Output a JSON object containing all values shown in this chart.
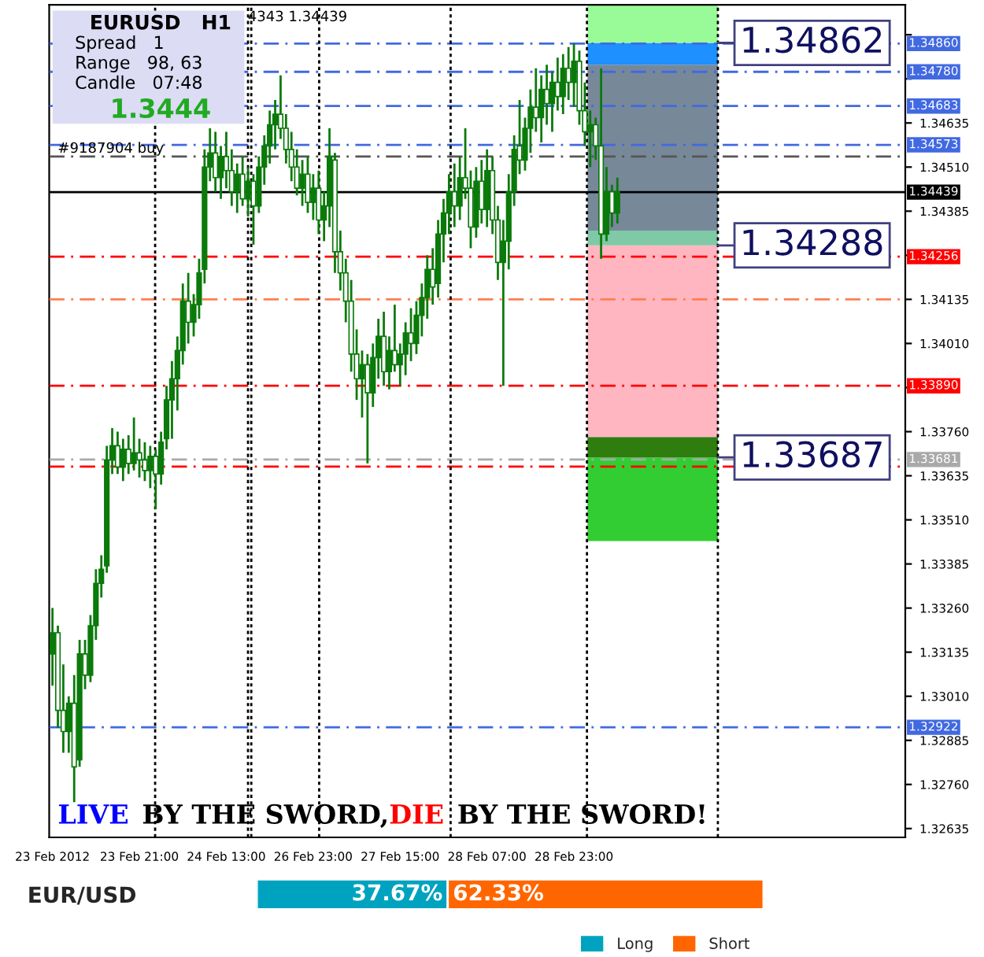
{
  "chart_data": [
    {
      "type": "candlestick",
      "categories": [
        "23 Feb 2012",
        null,
        null,
        null,
        null,
        null,
        null,
        null,
        null,
        null,
        null,
        null,
        null,
        null,
        null,
        null,
        "23 Feb 21:00",
        null,
        null,
        null,
        null,
        null,
        null,
        null,
        null,
        null,
        null,
        null,
        null,
        null,
        null,
        null,
        "24 Feb 13:00",
        null,
        null,
        null,
        null,
        null,
        null,
        null,
        null,
        null,
        null,
        null,
        null,
        null,
        null,
        null,
        "26 Feb 23:00",
        null,
        null,
        null,
        null,
        null,
        null,
        null,
        null,
        null,
        null,
        null,
        null,
        null,
        null,
        null,
        "27 Feb 15:00",
        null,
        null,
        null,
        null,
        null,
        null,
        null,
        null,
        null,
        null,
        null,
        null,
        null,
        null,
        null,
        "28 Feb 07:00",
        null,
        null,
        null,
        null,
        null,
        null,
        null,
        null,
        null,
        null,
        null,
        null,
        null,
        null,
        null,
        "28 Feb 23:00",
        null,
        null,
        null,
        null,
        null,
        null,
        null,
        null,
        null,
        null,
        null,
        null,
        null,
        null,
        null,
        null,
        null,
        null,
        null,
        null,
        null,
        null,
        null,
        null,
        null,
        null,
        null,
        null,
        null,
        null,
        null,
        null,
        null,
        null,
        null,
        null,
        null,
        null,
        null,
        null,
        null,
        null,
        null,
        null,
        null,
        null,
        null,
        null,
        null,
        null,
        null,
        null,
        null,
        null,
        null,
        null,
        null,
        null,
        null,
        null,
        null
      ],
      "ohlc": [
        [
          1.3313,
          1.3326,
          1.3304,
          1.3319
        ],
        [
          1.3319,
          1.3321,
          1.3292,
          1.3297
        ],
        [
          1.3297,
          1.331,
          1.3285,
          1.3291
        ],
        [
          1.3291,
          1.3301,
          1.3285,
          1.3299
        ],
        [
          1.3299,
          1.3307,
          1.3271,
          1.3281
        ],
        [
          1.3283,
          1.3317,
          1.3281,
          1.3313
        ],
        [
          1.3313,
          1.3317,
          1.3303,
          1.3307
        ],
        [
          1.3307,
          1.3324,
          1.3305,
          1.3321
        ],
        [
          1.3321,
          1.3337,
          1.3317,
          1.3333
        ],
        [
          1.3333,
          1.3341,
          1.3329,
          1.3337
        ],
        [
          1.3338,
          1.3372,
          1.3336,
          1.3368
        ],
        [
          1.3368,
          1.3377,
          1.3364,
          1.3372
        ],
        [
          1.3372,
          1.3376,
          1.3364,
          1.3366
        ],
        [
          1.3366,
          1.3374,
          1.3362,
          1.3371
        ],
        [
          1.3371,
          1.3375,
          1.3364,
          1.3367
        ],
        [
          1.3367,
          1.338,
          1.3365,
          1.337
        ],
        [
          1.337,
          1.3374,
          1.3363,
          1.3368
        ],
        [
          1.3368,
          1.3373,
          1.3362,
          1.3365
        ],
        [
          1.3365,
          1.3372,
          1.336,
          1.3369
        ],
        [
          1.3369,
          1.3371,
          1.3354,
          1.3364
        ],
        [
          1.3364,
          1.3376,
          1.3361,
          1.3373
        ],
        [
          1.3374,
          1.3389,
          1.3371,
          1.3385
        ],
        [
          1.3385,
          1.3396,
          1.3374,
          1.3391
        ],
        [
          1.3391,
          1.3403,
          1.3382,
          1.3399
        ],
        [
          1.3399,
          1.3418,
          1.3395,
          1.3413
        ],
        [
          1.3413,
          1.3421,
          1.3401,
          1.3407
        ],
        [
          1.3407,
          1.3415,
          1.3403,
          1.3412
        ],
        [
          1.3412,
          1.3425,
          1.3408,
          1.3421
        ],
        [
          1.3422,
          1.3456,
          1.3418,
          1.3451
        ],
        [
          1.3451,
          1.3462,
          1.3447,
          1.3455
        ],
        [
          1.3455,
          1.3461,
          1.3444,
          1.3448
        ],
        [
          1.3448,
          1.3457,
          1.3442,
          1.3454
        ],
        [
          1.3454,
          1.3461,
          1.3445,
          1.345
        ],
        [
          1.345,
          1.3456,
          1.344,
          1.3444
        ],
        [
          1.3444,
          1.3452,
          1.3438,
          1.3449
        ],
        [
          1.3449,
          1.3454,
          1.344,
          1.3442
        ],
        [
          1.3442,
          1.3451,
          1.3437,
          1.3447
        ],
        [
          1.3447,
          1.3449,
          1.3429,
          1.344
        ],
        [
          1.344,
          1.3454,
          1.3438,
          1.3451
        ],
        [
          1.3451,
          1.346,
          1.3446,
          1.3457
        ],
        [
          1.3457,
          1.3467,
          1.3452,
          1.3463
        ],
        [
          1.3463,
          1.347,
          1.3456,
          1.3466
        ],
        [
          1.3466,
          1.3477,
          1.3459,
          1.3462
        ],
        [
          1.3462,
          1.3466,
          1.3452,
          1.3456
        ],
        [
          1.3456,
          1.3461,
          1.3447,
          1.3451
        ],
        [
          1.3451,
          1.3456,
          1.3443,
          1.3445
        ],
        [
          1.3445,
          1.3453,
          1.344,
          1.3449
        ],
        [
          1.3449,
          1.3454,
          1.3438,
          1.3441
        ],
        [
          1.3441,
          1.3449,
          1.3436,
          1.3445
        ],
        [
          1.3445,
          1.345,
          1.3432,
          1.3436
        ],
        [
          1.3436,
          1.3444,
          1.343,
          1.344
        ],
        [
          1.344,
          1.3462,
          1.3434,
          1.3454
        ],
        [
          1.3453,
          1.3455,
          1.3421,
          1.3427
        ],
        [
          1.3427,
          1.3433,
          1.3416,
          1.3421
        ],
        [
          1.3421,
          1.3425,
          1.3407,
          1.3413
        ],
        [
          1.3413,
          1.3419,
          1.3393,
          1.3398
        ],
        [
          1.3398,
          1.3405,
          1.3385,
          1.3391
        ],
        [
          1.3391,
          1.3399,
          1.338,
          1.3395
        ],
        [
          1.3395,
          1.3398,
          1.3367,
          1.3387
        ],
        [
          1.3387,
          1.3401,
          1.3383,
          1.3397
        ],
        [
          1.3397,
          1.3408,
          1.3391,
          1.3403
        ],
        [
          1.3403,
          1.341,
          1.3389,
          1.3393
        ],
        [
          1.3393,
          1.3403,
          1.3388,
          1.3399
        ],
        [
          1.3399,
          1.3412,
          1.3393,
          1.3395
        ],
        [
          1.3395,
          1.3401,
          1.3389,
          1.3398
        ],
        [
          1.3398,
          1.3407,
          1.3392,
          1.3404
        ],
        [
          1.3404,
          1.3411,
          1.3396,
          1.3401
        ],
        [
          1.3401,
          1.3413,
          1.3398,
          1.3409
        ],
        [
          1.3409,
          1.3418,
          1.3403,
          1.3414
        ],
        [
          1.3414,
          1.3426,
          1.3408,
          1.3422
        ],
        [
          1.3422,
          1.3428,
          1.3412,
          1.3417
        ],
        [
          1.3418,
          1.3436,
          1.3414,
          1.3432
        ],
        [
          1.3432,
          1.3442,
          1.3424,
          1.3438
        ],
        [
          1.3438,
          1.3449,
          1.3432,
          1.3444
        ],
        [
          1.3444,
          1.3452,
          1.3434,
          1.344
        ],
        [
          1.344,
          1.3454,
          1.3436,
          1.3448
        ],
        [
          1.3448,
          1.3462,
          1.3442,
          1.3445
        ],
        [
          1.3445,
          1.345,
          1.3428,
          1.3434
        ],
        [
          1.3434,
          1.3451,
          1.3431,
          1.3447
        ],
        [
          1.3447,
          1.3453,
          1.3435,
          1.3439
        ],
        [
          1.3439,
          1.3456,
          1.3434,
          1.345
        ],
        [
          1.345,
          1.3454,
          1.3432,
          1.3436
        ],
        [
          1.3436,
          1.344,
          1.3419,
          1.3424
        ],
        [
          1.3424,
          1.3436,
          1.3389,
          1.343
        ],
        [
          1.343,
          1.3449,
          1.3422,
          1.3444
        ],
        [
          1.3444,
          1.346,
          1.344,
          1.3456
        ],
        [
          1.3457,
          1.347,
          1.3449,
          1.3453
        ],
        [
          1.3453,
          1.3465,
          1.345,
          1.3462
        ],
        [
          1.3462,
          1.3473,
          1.3455,
          1.3468
        ],
        [
          1.3468,
          1.3479,
          1.3461,
          1.3465
        ],
        [
          1.3465,
          1.3477,
          1.3458,
          1.3473
        ],
        [
          1.3473,
          1.348,
          1.3463,
          1.3469
        ],
        [
          1.3469,
          1.3478,
          1.3461,
          1.3475
        ],
        [
          1.3475,
          1.3482,
          1.3467,
          1.3471
        ],
        [
          1.3471,
          1.3483,
          1.3466,
          1.3479
        ],
        [
          1.3479,
          1.3485,
          1.347,
          1.3475
        ],
        [
          1.3475,
          1.3486,
          1.3468,
          1.3481
        ],
        [
          1.3481,
          1.3484,
          1.3463,
          1.3467
        ],
        [
          1.3467,
          1.3475,
          1.3457,
          1.3461
        ],
        [
          1.3461,
          1.3467,
          1.3451,
          1.3463
        ],
        [
          1.3463,
          1.3465,
          1.3453,
          1.3457
        ],
        [
          1.3457,
          1.3479,
          1.3425,
          1.3432
        ],
        [
          1.3432,
          1.3451,
          1.343,
          1.3444
        ],
        [
          1.3444,
          1.3446,
          1.3434,
          1.3438
        ],
        [
          1.3438,
          1.3448,
          1.3435,
          1.3444
        ],
        null,
        null,
        null,
        null,
        null,
        null,
        null,
        null,
        null,
        null,
        null,
        null,
        null,
        null,
        null,
        null,
        null,
        null,
        null,
        null,
        null,
        null,
        null,
        null,
        null,
        null,
        null,
        null,
        null,
        null,
        null,
        null,
        null,
        null,
        null,
        null,
        null,
        null,
        null,
        null,
        null,
        null,
        null,
        null,
        null,
        null,
        null,
        null,
        null,
        null,
        null,
        null,
        null
      ],
      "color": "#0a7a0a",
      "bands": [
        {
          "axis": "y",
          "from": 1.3345,
          "to": 1.33687,
          "color": "#32cd32"
        },
        {
          "axis": "y",
          "from": 1.33687,
          "to": 1.33745,
          "color": "#2e7d0e"
        },
        {
          "axis": "y",
          "from": 1.33745,
          "to": 1.34288,
          "color": "#ffb6c1"
        },
        {
          "axis": "y",
          "from": 1.34288,
          "to": 1.3433,
          "color": "#7fc9a6"
        },
        {
          "axis": "y",
          "from": 1.3433,
          "to": 1.348,
          "color": "#778899"
        },
        {
          "axis": "y",
          "from": 1.348,
          "to": 1.34862,
          "color": "#1e90ff"
        },
        {
          "axis": "y",
          "from": 1.34862,
          "to": 1.3497,
          "color": "#98fb98"
        }
      ],
      "ylim": [
        1.3261,
        1.3497
      ],
      "yticks": [
        1.32635,
        {
          "value": 1.3276,
          "label": "1.32760"
        },
        1.32885,
        {
          "value": 1.3301,
          "label": "1.33010"
        },
        1.33135,
        {
          "value": 1.3326,
          "label": "1.33260"
        },
        1.33385,
        {
          "value": 1.3351,
          "label": "1.33510"
        },
        1.33635,
        {
          "value": 1.3376,
          "label": "1.33760"
        },
        {
          "value": 1.33885,
          "label": null
        },
        {
          "value": 1.3401,
          "label": "1.34010"
        },
        1.34135,
        {
          "value": 1.3426,
          "label": null
        },
        1.34385,
        {
          "value": 1.3451,
          "label": "1.34510"
        },
        1.34635,
        {
          "value": 1.3476,
          "label": null
        },
        {
          "value": 1.34885,
          "label": null
        }
      ],
      "ref_lines": [
        {
          "axis": "y",
          "value": 1.3486,
          "label": "1.34860",
          "color": "#4169e1",
          "line_style": "dashed"
        },
        {
          "axis": "y",
          "value": 1.3478,
          "label": "1.34780",
          "color": "#4169e1",
          "line_style": "dashed"
        },
        {
          "axis": "y",
          "value": 1.34683,
          "label": "1.34683",
          "color": "#4169e1",
          "line_style": "dashed"
        },
        {
          "axis": "y",
          "value": 1.34573,
          "label": "1.34573",
          "color": "#4169e1",
          "line_style": "dashed"
        },
        {
          "axis": "y",
          "value": 1.3454,
          "color": "#555555",
          "line_style": "dashed"
        },
        {
          "axis": "y",
          "value": 1.34439,
          "label": "1.34439",
          "color": "#000000",
          "line_style": "solid"
        },
        {
          "axis": "y",
          "value": 1.34256,
          "label": "1.34256",
          "color": "#ff0000",
          "line_style": "dashed"
        },
        {
          "axis": "y",
          "value": 1.34135,
          "color": "#ff7f50",
          "line_style": "dashed"
        },
        {
          "axis": "y",
          "value": 1.3389,
          "label": "1.33890",
          "color": "#ff0000",
          "line_style": "dashed"
        },
        {
          "axis": "y",
          "value": 1.33661,
          "color": "#ff0000",
          "line_style": "dashed"
        },
        {
          "axis": "y",
          "value": 1.33681,
          "label": "1.33681",
          "color": "#a9a9a9",
          "line_style": "dashed"
        },
        {
          "axis": "y",
          "value": 1.32922,
          "label": "1.32922",
          "color": "#4169e1",
          "line_style": "dashed"
        }
      ],
      "annotations": [
        "EURUSD   H1",
        "Spread   1",
        "Range   98, 63",
        "Candle   07:48",
        "1.3444",
        "4343 1.34439",
        "#9187904 buy",
        "LIVE",
        "BY THE SWORD,",
        "DIE",
        "BY THE SWORD!",
        "1.34862",
        "1.34288",
        "1.33687"
      ]
    },
    {
      "type": "bar",
      "orientation": "horizontal",
      "stacked": true,
      "categories": [
        "EUR/USD"
      ],
      "series": [
        {
          "name": "Long",
          "color": "#00a3bf",
          "values": [
            37.67
          ],
          "value_labels": [
            "37.67%"
          ]
        },
        {
          "name": "Short",
          "color": "#ff6600",
          "values": [
            62.33
          ],
          "value_labels": [
            "62.33%"
          ]
        }
      ],
      "xlim": [
        0,
        100
      ],
      "tick_labels": "y",
      "legend": "bottom right"
    }
  ]
}
